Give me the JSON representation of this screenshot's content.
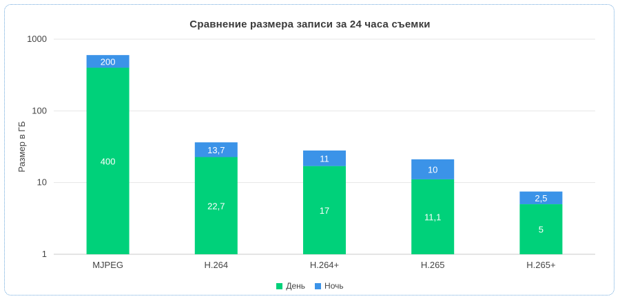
{
  "chart_data": {
    "type": "bar",
    "stacked": true,
    "title": "Сравнение размера записи за 24 часа съемки",
    "ylabel": "Размер в ГБ",
    "xlabel": "",
    "yscale": "log",
    "ylim": [
      1,
      1000
    ],
    "yticks": [
      "1",
      "10",
      "100",
      "1000"
    ],
    "categories": [
      "MJPEG",
      "H.264",
      "H.264+",
      "H.265",
      "H.265+"
    ],
    "series": [
      {
        "name": "День",
        "color": "#00d17a",
        "values": [
          400,
          22.7,
          17,
          11.1,
          5
        ],
        "labels": [
          "400",
          "22,7",
          "17",
          "11,1",
          "5"
        ]
      },
      {
        "name": "Ночь",
        "color": "#3b93e8",
        "values": [
          200,
          13.7,
          11,
          10,
          2.5
        ],
        "labels": [
          "200",
          "13,7",
          "11",
          "10",
          "2,5"
        ]
      }
    ],
    "grid": true,
    "legend": "bottom-center"
  }
}
